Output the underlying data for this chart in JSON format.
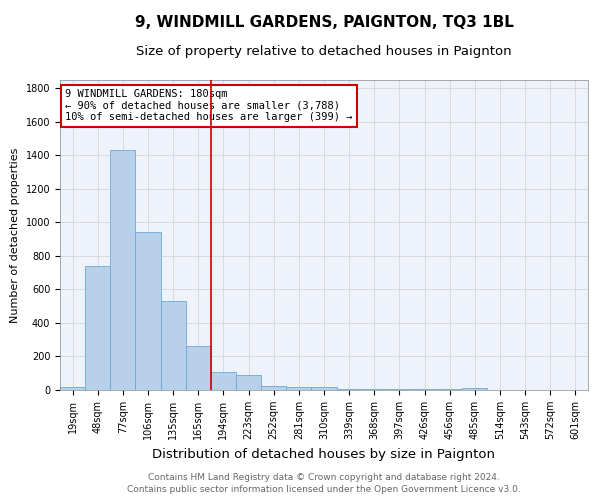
{
  "title": "9, WINDMILL GARDENS, PAIGNTON, TQ3 1BL",
  "subtitle": "Size of property relative to detached houses in Paignton",
  "xlabel": "Distribution of detached houses by size in Paignton",
  "ylabel": "Number of detached properties",
  "bin_labels": [
    "19sqm",
    "48sqm",
    "77sqm",
    "106sqm",
    "135sqm",
    "165sqm",
    "194sqm",
    "223sqm",
    "252sqm",
    "281sqm",
    "310sqm",
    "339sqm",
    "368sqm",
    "397sqm",
    "426sqm",
    "456sqm",
    "485sqm",
    "514sqm",
    "543sqm",
    "572sqm",
    "601sqm"
  ],
  "bar_values": [
    15,
    740,
    1430,
    940,
    530,
    265,
    108,
    88,
    25,
    15,
    15,
    8,
    5,
    8,
    5,
    5,
    12,
    2,
    0,
    0,
    0
  ],
  "bar_color": "#b8d0ea",
  "bar_edge_color": "#6aaad4",
  "red_line_index": 6,
  "red_line_color": "#cc0000",
  "ylim": [
    0,
    1850
  ],
  "yticks": [
    0,
    200,
    400,
    600,
    800,
    1000,
    1200,
    1400,
    1600,
    1800
  ],
  "annotation_text": "9 WINDMILL GARDENS: 180sqm\n← 90% of detached houses are smaller (3,788)\n10% of semi-detached houses are larger (399) →",
  "annotation_box_color": "#ffffff",
  "annotation_box_edge": "#cc0000",
  "footer_line1": "Contains HM Land Registry data © Crown copyright and database right 2024.",
  "footer_line2": "Contains public sector information licensed under the Open Government Licence v3.0.",
  "title_fontsize": 11,
  "subtitle_fontsize": 9.5,
  "xlabel_fontsize": 9.5,
  "ylabel_fontsize": 8,
  "tick_fontsize": 7,
  "annotation_fontsize": 7.5,
  "footer_fontsize": 6.5
}
